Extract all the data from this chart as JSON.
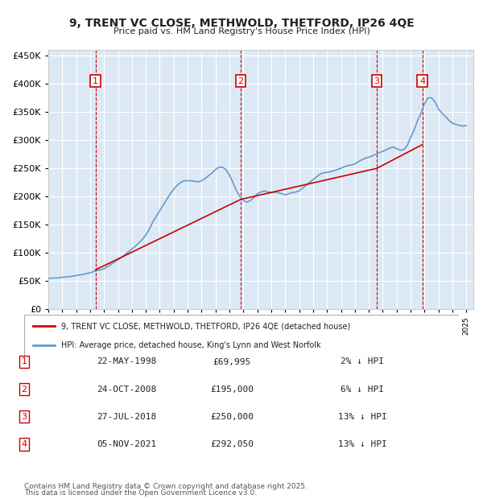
{
  "title": "9, TRENT VC CLOSE, METHWOLD, THETFORD, IP26 4QE",
  "subtitle": "Price paid vs. HM Land Registry's House Price Index (HPI)",
  "ylabel": "",
  "background_color": "#dce9f5",
  "plot_bg_color": "#dce9f5",
  "ylim": [
    0,
    460000
  ],
  "yticks": [
    0,
    50000,
    100000,
    150000,
    200000,
    250000,
    300000,
    350000,
    400000,
    450000
  ],
  "legend1": "9, TRENT VC CLOSE, METHWOLD, THETFORD, IP26 4QE (detached house)",
  "legend2": "HPI: Average price, detached house, King's Lynn and West Norfolk",
  "footer1": "Contains HM Land Registry data © Crown copyright and database right 2025.",
  "footer2": "This data is licensed under the Open Government Licence v3.0.",
  "transactions": [
    {
      "num": 1,
      "date": "22-MAY-1998",
      "price": 69995,
      "hpi_diff": "2% ↓ HPI",
      "x_year": 1998.38
    },
    {
      "num": 2,
      "date": "24-OCT-2008",
      "price": 195000,
      "hpi_diff": "6% ↓ HPI",
      "x_year": 2008.81
    },
    {
      "num": 3,
      "date": "27-JUL-2018",
      "price": 250000,
      "hpi_diff": "13% ↓ HPI",
      "x_year": 2018.57
    },
    {
      "num": 4,
      "date": "05-NOV-2021",
      "price": 292050,
      "hpi_diff": "13% ↓ HPI",
      "x_year": 2021.84
    }
  ],
  "hpi_line_color": "#6699cc",
  "sale_line_color": "#cc0000",
  "dashed_line_color": "#cc0000",
  "marker_box_color": "#cc0000",
  "hpi_data": {
    "years": [
      1995.0,
      1995.25,
      1995.5,
      1995.75,
      1996.0,
      1996.25,
      1996.5,
      1996.75,
      1997.0,
      1997.25,
      1997.5,
      1997.75,
      1998.0,
      1998.25,
      1998.5,
      1998.75,
      1999.0,
      1999.25,
      1999.5,
      1999.75,
      2000.0,
      2000.25,
      2000.5,
      2000.75,
      2001.0,
      2001.25,
      2001.5,
      2001.75,
      2002.0,
      2002.25,
      2002.5,
      2002.75,
      2003.0,
      2003.25,
      2003.5,
      2003.75,
      2004.0,
      2004.25,
      2004.5,
      2004.75,
      2005.0,
      2005.25,
      2005.5,
      2005.75,
      2006.0,
      2006.25,
      2006.5,
      2006.75,
      2007.0,
      2007.25,
      2007.5,
      2007.75,
      2008.0,
      2008.25,
      2008.5,
      2008.75,
      2009.0,
      2009.25,
      2009.5,
      2009.75,
      2010.0,
      2010.25,
      2010.5,
      2010.75,
      2011.0,
      2011.25,
      2011.5,
      2011.75,
      2012.0,
      2012.25,
      2012.5,
      2012.75,
      2013.0,
      2013.25,
      2013.5,
      2013.75,
      2014.0,
      2014.25,
      2014.5,
      2014.75,
      2015.0,
      2015.25,
      2015.5,
      2015.75,
      2016.0,
      2016.25,
      2016.5,
      2016.75,
      2017.0,
      2017.25,
      2017.5,
      2017.75,
      2018.0,
      2018.25,
      2018.5,
      2018.75,
      2019.0,
      2019.25,
      2019.5,
      2019.75,
      2020.0,
      2020.25,
      2020.5,
      2020.75,
      2021.0,
      2021.25,
      2021.5,
      2021.75,
      2022.0,
      2022.25,
      2022.5,
      2022.75,
      2023.0,
      2023.25,
      2023.5,
      2023.75,
      2024.0,
      2024.25,
      2024.5,
      2024.75,
      2025.0
    ],
    "values": [
      55000,
      55500,
      55800,
      56000,
      57000,
      57500,
      58000,
      59000,
      60000,
      61000,
      62000,
      63500,
      65000,
      67000,
      69000,
      70000,
      72000,
      76000,
      80000,
      84000,
      88000,
      92000,
      97000,
      102000,
      107000,
      112000,
      118000,
      124000,
      132000,
      142000,
      155000,
      165000,
      175000,
      185000,
      195000,
      205000,
      213000,
      220000,
      225000,
      228000,
      228000,
      228000,
      227000,
      226000,
      228000,
      232000,
      237000,
      242000,
      248000,
      252000,
      252000,
      248000,
      238000,
      225000,
      210000,
      200000,
      193000,
      190000,
      193000,
      198000,
      205000,
      208000,
      210000,
      208000,
      207000,
      208000,
      207000,
      205000,
      203000,
      205000,
      207000,
      208000,
      210000,
      215000,
      220000,
      225000,
      230000,
      235000,
      240000,
      242000,
      243000,
      244000,
      246000,
      248000,
      250000,
      253000,
      255000,
      256000,
      258000,
      262000,
      265000,
      268000,
      270000,
      272000,
      275000,
      278000,
      280000,
      283000,
      286000,
      288000,
      285000,
      282000,
      283000,
      290000,
      305000,
      318000,
      335000,
      348000,
      365000,
      375000,
      375000,
      368000,
      355000,
      348000,
      342000,
      335000,
      330000,
      328000,
      326000,
      325000,
      326000
    ]
  },
  "sale_data": {
    "years": [
      1998.38,
      2008.81,
      2018.57,
      2021.84
    ],
    "values": [
      69995,
      195000,
      250000,
      292050
    ]
  },
  "xmin": 1995,
  "xmax": 2025.5
}
